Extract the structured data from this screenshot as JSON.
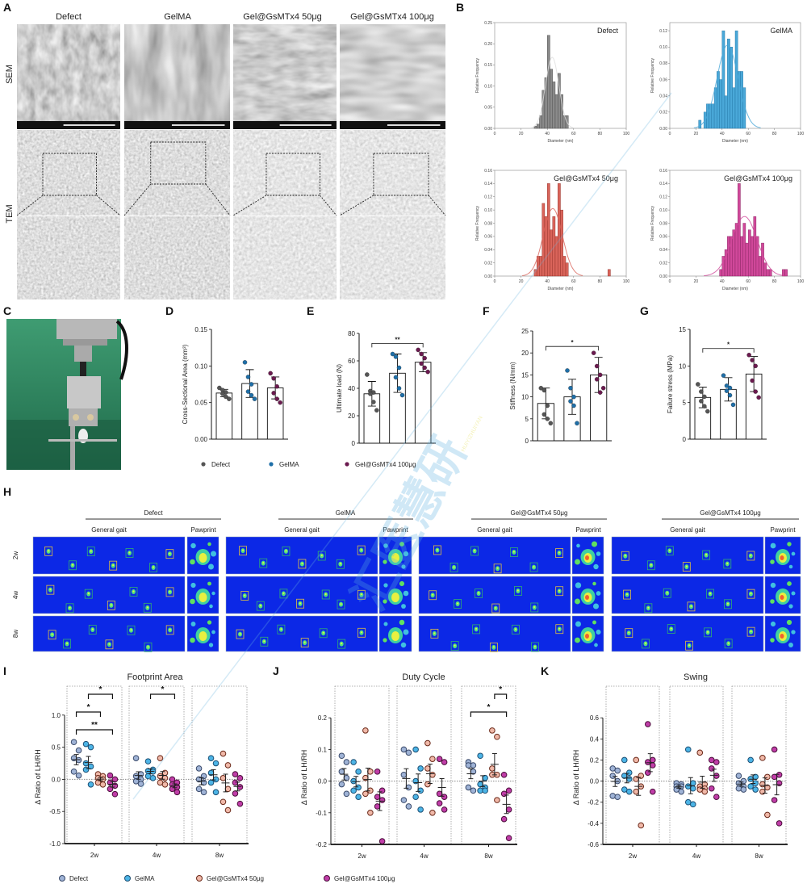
{
  "panel_labels": [
    "A",
    "B",
    "C",
    "D",
    "E",
    "F",
    "G",
    "H",
    "I",
    "J",
    "K"
  ],
  "panel_a": {
    "columns": [
      "Defect",
      "GelMA",
      "Gel@GsMTx4 50μg",
      "Gel@GsMTx4 100μg"
    ],
    "rows": [
      "SEM",
      "TEM"
    ]
  },
  "panel_h": {
    "groups": [
      "Defect",
      "GelMA",
      "Gel@GsMTx4 50μg",
      "Gel@GsMTx4 100μg"
    ],
    "subheaders": [
      "General gait",
      "Pawprint"
    ],
    "rows": [
      "2w",
      "4w",
      "8w"
    ]
  },
  "legend_mech": [
    "Defect",
    "GelMA",
    "Gel@GsMTx4 100μg"
  ],
  "legend_gait": [
    "Defect",
    "GelMA",
    "Gel@GsMTx4 50μg",
    "Gel@GsMTx4 100μg"
  ],
  "watermark": {
    "text": "汇医慧研",
    "latin": "HUIYIZHUIYAN"
  },
  "colors": {
    "hist_defect": "#8a8a8a",
    "hist_gelma": "#4aa8d8",
    "hist_50": "#d9645a",
    "hist_100": "#d0489a",
    "mech_defect": "#555555",
    "mech_gelma": "#1f6fa8",
    "mech_100": "#6b1a4f",
    "gait_defect": "#9fb3d6",
    "gait_gelma": "#4cb4e6",
    "gait_50": "#f0b8a8",
    "gait_100": "#c03da8",
    "gait_bg": "#0c28e6"
  },
  "chart_data": [
    {
      "panel": "B",
      "type": "bar",
      "title": "Defect",
      "xlabel": "Diameter (nm)",
      "ylabel": "Relative Frequency",
      "xlim": [
        0,
        100
      ],
      "ylim": [
        0,
        0.25
      ],
      "xticks": [
        0,
        20,
        40,
        60,
        80,
        100
      ],
      "yticks": [
        "0.00",
        "0.05",
        "0.10",
        "0.15",
        "0.20",
        "0.25"
      ],
      "bin_width": 2,
      "bins": [
        30,
        32,
        34,
        36,
        38,
        40,
        42,
        44,
        46,
        48,
        50,
        52,
        54
      ],
      "values": [
        0.005,
        0.01,
        0.03,
        0.09,
        0.12,
        0.22,
        0.14,
        0.11,
        0.08,
        0.13,
        0.08,
        0.03,
        0.03
      ]
    },
    {
      "panel": "B",
      "type": "bar",
      "title": "GelMA",
      "xlabel": "Diameter (nm)",
      "ylabel": "Relative Frequency",
      "xlim": [
        0,
        100
      ],
      "ylim": [
        0,
        0.13
      ],
      "xticks": [
        0,
        20,
        40,
        60,
        80,
        100
      ],
      "yticks": [
        "0.00",
        "0.02",
        "0.04",
        "0.06",
        "0.08",
        "0.10",
        "0.12"
      ],
      "bin_width": 2,
      "bins": [
        22,
        26,
        28,
        30,
        32,
        34,
        36,
        38,
        40,
        42,
        44,
        46,
        48,
        50,
        52,
        54,
        56
      ],
      "values": [
        0.01,
        0.02,
        0.03,
        0.03,
        0.03,
        0.05,
        0.07,
        0.06,
        0.12,
        0.04,
        0.11,
        0.1,
        0.05,
        0.12,
        0.07,
        0.07,
        0.05
      ]
    },
    {
      "panel": "B",
      "type": "bar",
      "title": "Gel@GsMTx4 50μg",
      "xlabel": "Diameter (nm)",
      "ylabel": "Relative Frequency",
      "xlim": [
        0,
        100
      ],
      "ylim": [
        0,
        0.16
      ],
      "xticks": [
        0,
        20,
        40,
        60,
        80,
        100
      ],
      "yticks": [
        "0.00",
        "0.02",
        "0.04",
        "0.06",
        "0.08",
        "0.10",
        "0.12",
        "0.14",
        "0.16"
      ],
      "bin_width": 2,
      "bins": [
        30,
        32,
        34,
        36,
        38,
        40,
        42,
        44,
        46,
        48,
        50,
        52,
        54,
        86
      ],
      "values": [
        0.01,
        0.03,
        0.03,
        0.11,
        0.09,
        0.14,
        0.07,
        0.09,
        0.06,
        0.14,
        0.1,
        0.03,
        0.02,
        0.01
      ]
    },
    {
      "panel": "B",
      "type": "bar",
      "title": "Gel@GsMTx4 100μg",
      "xlabel": "Diameter (nm)",
      "ylabel": "Relative Frequency",
      "xlim": [
        0,
        100
      ],
      "ylim": [
        0,
        0.16
      ],
      "xticks": [
        0,
        20,
        40,
        60,
        80,
        100
      ],
      "yticks": [
        "0.00",
        "0.02",
        "0.04",
        "0.06",
        "0.08",
        "0.10",
        "0.12",
        "0.14",
        "0.16"
      ],
      "bin_width": 2,
      "bins": [
        38,
        40,
        42,
        44,
        46,
        48,
        50,
        52,
        54,
        56,
        58,
        60,
        62,
        64,
        66,
        68,
        70,
        72,
        74,
        76,
        86,
        88
      ],
      "values": [
        0.01,
        0.03,
        0.04,
        0.06,
        0.06,
        0.07,
        0.08,
        0.14,
        0.06,
        0.08,
        0.05,
        0.07,
        0.06,
        0.09,
        0.06,
        0.03,
        0.05,
        0.02,
        0.01,
        0.01,
        0.01,
        0.01
      ]
    },
    {
      "panel": "D",
      "type": "bar",
      "ylabel": "Cross-Sectional Area (mm³)",
      "ylim": [
        0,
        0.15
      ],
      "yticks": [
        "0.00",
        "0.05",
        "0.10",
        "0.15"
      ],
      "series": [
        {
          "name": "Defect",
          "mean": 0.063,
          "sd": 0.005,
          "points": [
            0.07,
            0.067,
            0.064,
            0.062,
            0.058,
            0.055
          ]
        },
        {
          "name": "GelMA",
          "mean": 0.076,
          "sd": 0.019,
          "points": [
            0.105,
            0.085,
            0.075,
            0.065,
            0.06,
            0.055
          ]
        },
        {
          "name": "Gel@GsMTx4 100μg",
          "mean": 0.07,
          "sd": 0.015,
          "points": [
            0.09,
            0.083,
            0.072,
            0.063,
            0.055,
            0.05
          ]
        }
      ],
      "significance": []
    },
    {
      "panel": "E",
      "type": "bar",
      "ylabel": "Ultimate load (N)",
      "ylim": [
        0,
        80
      ],
      "yticks": [
        "0",
        "20",
        "40",
        "60",
        "80"
      ],
      "series": [
        {
          "name": "Defect",
          "mean": 36,
          "sd": 9,
          "points": [
            50,
            38,
            37,
            36,
            30,
            24
          ]
        },
        {
          "name": "GelMA",
          "mean": 51,
          "sd": 14,
          "points": [
            65,
            63,
            55,
            48,
            40,
            35
          ]
        },
        {
          "name": "Gel@GsMTx4 100μg",
          "mean": 59,
          "sd": 7,
          "points": [
            68,
            65,
            62,
            58,
            55,
            52
          ]
        }
      ],
      "significance": [
        {
          "from": 0,
          "to": 2,
          "label": "**"
        }
      ]
    },
    {
      "panel": "F",
      "type": "bar",
      "ylabel": "Stiffness (N/mm)",
      "ylim": [
        0,
        25
      ],
      "yticks": [
        "0",
        "5",
        "10",
        "15",
        "20",
        "25"
      ],
      "series": [
        {
          "name": "Defect",
          "mean": 8.5,
          "sd": 3.5,
          "points": [
            12,
            11.5,
            8,
            6,
            5,
            4
          ]
        },
        {
          "name": "GelMA",
          "mean": 10,
          "sd": 4,
          "points": [
            16,
            12,
            10,
            9,
            8,
            4
          ]
        },
        {
          "name": "Gel@GsMTx4 100μg",
          "mean": 15,
          "sd": 4,
          "points": [
            20,
            17,
            15,
            14,
            11,
            12
          ]
        }
      ],
      "significance": [
        {
          "from": 0,
          "to": 2,
          "label": "*"
        }
      ]
    },
    {
      "panel": "G",
      "type": "bar",
      "ylabel": "Failure stress (MPa)",
      "ylim": [
        0,
        15
      ],
      "yticks": [
        "0",
        "5",
        "10",
        "15"
      ],
      "series": [
        {
          "name": "Defect",
          "mean": 5.7,
          "sd": 1.4,
          "points": [
            7.5,
            6.5,
            5.8,
            5.2,
            4.5,
            3.8
          ]
        },
        {
          "name": "GelMA",
          "mean": 6.8,
          "sd": 1.6,
          "points": [
            8.7,
            7.3,
            7.0,
            6.6,
            6.0,
            4.7
          ]
        },
        {
          "name": "Gel@GsMTx4 100μg",
          "mean": 8.9,
          "sd": 2.4,
          "points": [
            11.5,
            10.8,
            10.0,
            8.0,
            6.5,
            5.7
          ]
        }
      ],
      "significance": [
        {
          "from": 0,
          "to": 2,
          "label": "*"
        }
      ]
    },
    {
      "panel": "I",
      "type": "scatter",
      "title": "Footprint Area",
      "ylabel": "Δ Ratio of LH/RH",
      "ylim": [
        -1.0,
        1.45
      ],
      "yticks": [
        "1.0",
        "0.5",
        "0.0",
        "-0.5",
        "-1.0"
      ],
      "categories": [
        "2w",
        "4w",
        "8w"
      ],
      "series": [
        {
          "name": "Defect",
          "points": [
            [
              0.58,
              0.45,
              0.33,
              0.3,
              0.12,
              0.06
            ],
            [
              0.33,
              0.08,
              0.05,
              0.0,
              -0.03,
              -0.07
            ],
            [
              0.17,
              0.05,
              0.0,
              -0.05,
              -0.15,
              -0.2
            ]
          ]
        },
        {
          "name": "GelMA",
          "points": [
            [
              0.55,
              0.5,
              0.25,
              0.2,
              0.15,
              -0.08
            ],
            [
              0.28,
              0.15,
              0.13,
              0.12,
              0.05,
              0.02
            ],
            [
              0.33,
              0.25,
              0.1,
              0.0,
              -0.05,
              -0.2
            ]
          ]
        },
        {
          "name": "Gel@GsMTx4 50μg",
          "points": [
            [
              0.08,
              0.05,
              0.02,
              0.0,
              -0.05,
              -0.08
            ],
            [
              0.33,
              0.1,
              0.05,
              0.02,
              -0.05,
              -0.08
            ],
            [
              0.4,
              0.22,
              0.02,
              -0.15,
              -0.35,
              -0.48
            ]
          ]
        },
        {
          "name": "Gel@GsMTx4 100μg",
          "points": [
            [
              0.06,
              0.0,
              -0.05,
              -0.1,
              -0.15,
              -0.23
            ],
            [
              0.0,
              -0.05,
              -0.08,
              -0.12,
              -0.15,
              -0.2
            ],
            [
              0.08,
              0.02,
              -0.05,
              -0.12,
              -0.22,
              -0.38
            ]
          ]
        }
      ],
      "significance": [
        {
          "time": 0,
          "from": 1,
          "to": 3,
          "label": "*"
        },
        {
          "time": 0,
          "from": 0,
          "to": 2,
          "label": "*"
        },
        {
          "time": 0,
          "from": 0,
          "to": 3,
          "label": "**"
        },
        {
          "time": 1,
          "from": 1,
          "to": 3,
          "label": "*"
        }
      ]
    },
    {
      "panel": "J",
      "type": "scatter",
      "title": "Duty Cycle",
      "ylabel": "Δ Ratio of LH/RH",
      "ylim": [
        -0.2,
        0.3
      ],
      "yticks": [
        "0.2",
        "0.1",
        "0.0",
        "-0.1",
        "-0.2"
      ],
      "categories": [
        "2w",
        "4w",
        "8w"
      ],
      "series": [
        {
          "name": "Defect",
          "points": [
            [
              0.08,
              0.06,
              0.03,
              0.01,
              -0.01,
              -0.04
            ],
            [
              0.1,
              0.09,
              0.02,
              -0.02,
              -0.06,
              -0.08
            ],
            [
              0.06,
              0.05,
              0.05,
              0.03,
              -0.02,
              -0.03
            ]
          ]
        },
        {
          "name": "GelMA",
          "points": [
            [
              0.06,
              0.03,
              0.0,
              -0.02,
              -0.03,
              -0.05
            ],
            [
              0.1,
              0.04,
              0.0,
              -0.03,
              -0.05,
              -0.09
            ],
            [
              0.08,
              0.01,
              -0.01,
              -0.02,
              -0.03,
              -0.03
            ]
          ]
        },
        {
          "name": "Gel@GsMTx4 50μg",
          "points": [
            [
              0.16,
              0.03,
              0.01,
              -0.03,
              -0.04,
              -0.1
            ],
            [
              0.12,
              0.07,
              0.04,
              0.02,
              -0.01,
              -0.1
            ],
            [
              0.16,
              0.14,
              0.04,
              0.02,
              0.02,
              -0.06
            ]
          ]
        },
        {
          "name": "Gel@GsMTx4 100μg",
          "points": [
            [
              0.03,
              -0.03,
              -0.05,
              -0.06,
              -0.08,
              -0.19
            ],
            [
              0.07,
              0.06,
              -0.04,
              -0.05,
              -0.07,
              -0.09
            ],
            [
              0.02,
              -0.03,
              -0.04,
              -0.09,
              -0.12,
              -0.18
            ]
          ]
        }
      ],
      "significance": [
        {
          "time": 2,
          "from": 2,
          "to": 3,
          "label": "*"
        },
        {
          "time": 2,
          "from": 0,
          "to": 3,
          "label": "*"
        }
      ]
    },
    {
      "panel": "K",
      "type": "scatter",
      "title": "Swing",
      "ylabel": "Δ Ratio of LH/RH",
      "ylim": [
        -0.6,
        0.9
      ],
      "yticks": [
        "0.6",
        "0.4",
        "0.2",
        "0.0",
        "-0.2",
        "-0.4",
        "-0.6"
      ],
      "categories": [
        "2w",
        "4w",
        "8w"
      ],
      "series": [
        {
          "name": "Defect",
          "points": [
            [
              0.12,
              0.1,
              0.05,
              0.0,
              -0.14,
              -0.15
            ],
            [
              -0.02,
              -0.03,
              -0.05,
              -0.05,
              -0.08,
              -0.1
            ],
            [
              0.05,
              0.0,
              -0.02,
              -0.05,
              -0.07,
              -0.08
            ]
          ]
        },
        {
          "name": "GelMA",
          "points": [
            [
              0.2,
              0.08,
              0.05,
              0.02,
              -0.08,
              -0.1
            ],
            [
              0.3,
              -0.02,
              -0.05,
              -0.07,
              -0.2,
              -0.22
            ],
            [
              0.2,
              0.04,
              0.02,
              -0.02,
              -0.05,
              -0.08
            ]
          ]
        },
        {
          "name": "Gel@GsMTx4 50μg",
          "points": [
            [
              0.2,
              0.05,
              0.02,
              -0.05,
              -0.1,
              -0.42
            ],
            [
              0.27,
              -0.03,
              -0.05,
              -0.07,
              -0.08,
              -0.1
            ],
            [
              0.22,
              0.04,
              -0.03,
              -0.06,
              -0.1,
              -0.32
            ]
          ]
        },
        {
          "name": "Gel@GsMTx4 100μg",
          "points": [
            [
              0.54,
              0.2,
              0.18,
              0.15,
              0.08,
              -0.1
            ],
            [
              0.2,
              0.18,
              0.12,
              0.05,
              -0.07,
              -0.15
            ],
            [
              0.3,
              0.06,
              0.04,
              -0.02,
              -0.18,
              -0.4
            ]
          ]
        }
      ],
      "significance": []
    }
  ]
}
